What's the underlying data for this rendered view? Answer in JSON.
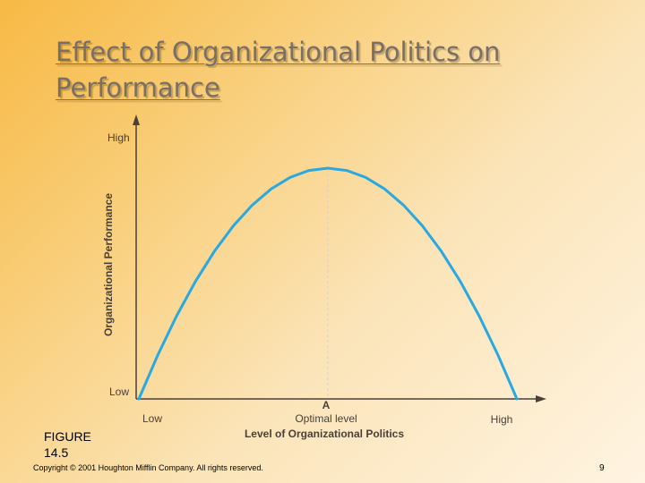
{
  "slide": {
    "title_line1": "Effect of Organizational Politics on",
    "title_line2": "Performance",
    "figure_label_line1": "FIGURE",
    "figure_label_line2": "14.5",
    "copyright": "Copyright © 2001 Houghton Mifflin Company. All rights reserved.",
    "page_number": "9"
  },
  "colors": {
    "curve": "#2aa8e0",
    "axis": "#4a4038",
    "optimal_guide": "#d8d0c4"
  },
  "chart_data": {
    "type": "line",
    "title": "",
    "xlabel": "Level of Organizational Politics",
    "ylabel": "Organizational Performance",
    "x_ticks": [
      "Low",
      "Optimal level",
      "High"
    ],
    "y_ticks": [
      "Low",
      "High"
    ],
    "optimal_point_label": "A",
    "xlim": [
      0,
      1
    ],
    "ylim": [
      0,
      1
    ],
    "grid": false,
    "series": [
      {
        "x": [
          0.0,
          0.05,
          0.1,
          0.15,
          0.2,
          0.25,
          0.3,
          0.35,
          0.4,
          0.45,
          0.5,
          0.55,
          0.6,
          0.65,
          0.7,
          0.75,
          0.8,
          0.85,
          0.9,
          0.95,
          1.0
        ],
        "values": [
          0.0,
          0.19,
          0.36,
          0.51,
          0.64,
          0.75,
          0.84,
          0.91,
          0.96,
          0.99,
          1.0,
          0.99,
          0.96,
          0.91,
          0.84,
          0.75,
          0.64,
          0.51,
          0.36,
          0.19,
          0.0
        ]
      }
    ]
  }
}
